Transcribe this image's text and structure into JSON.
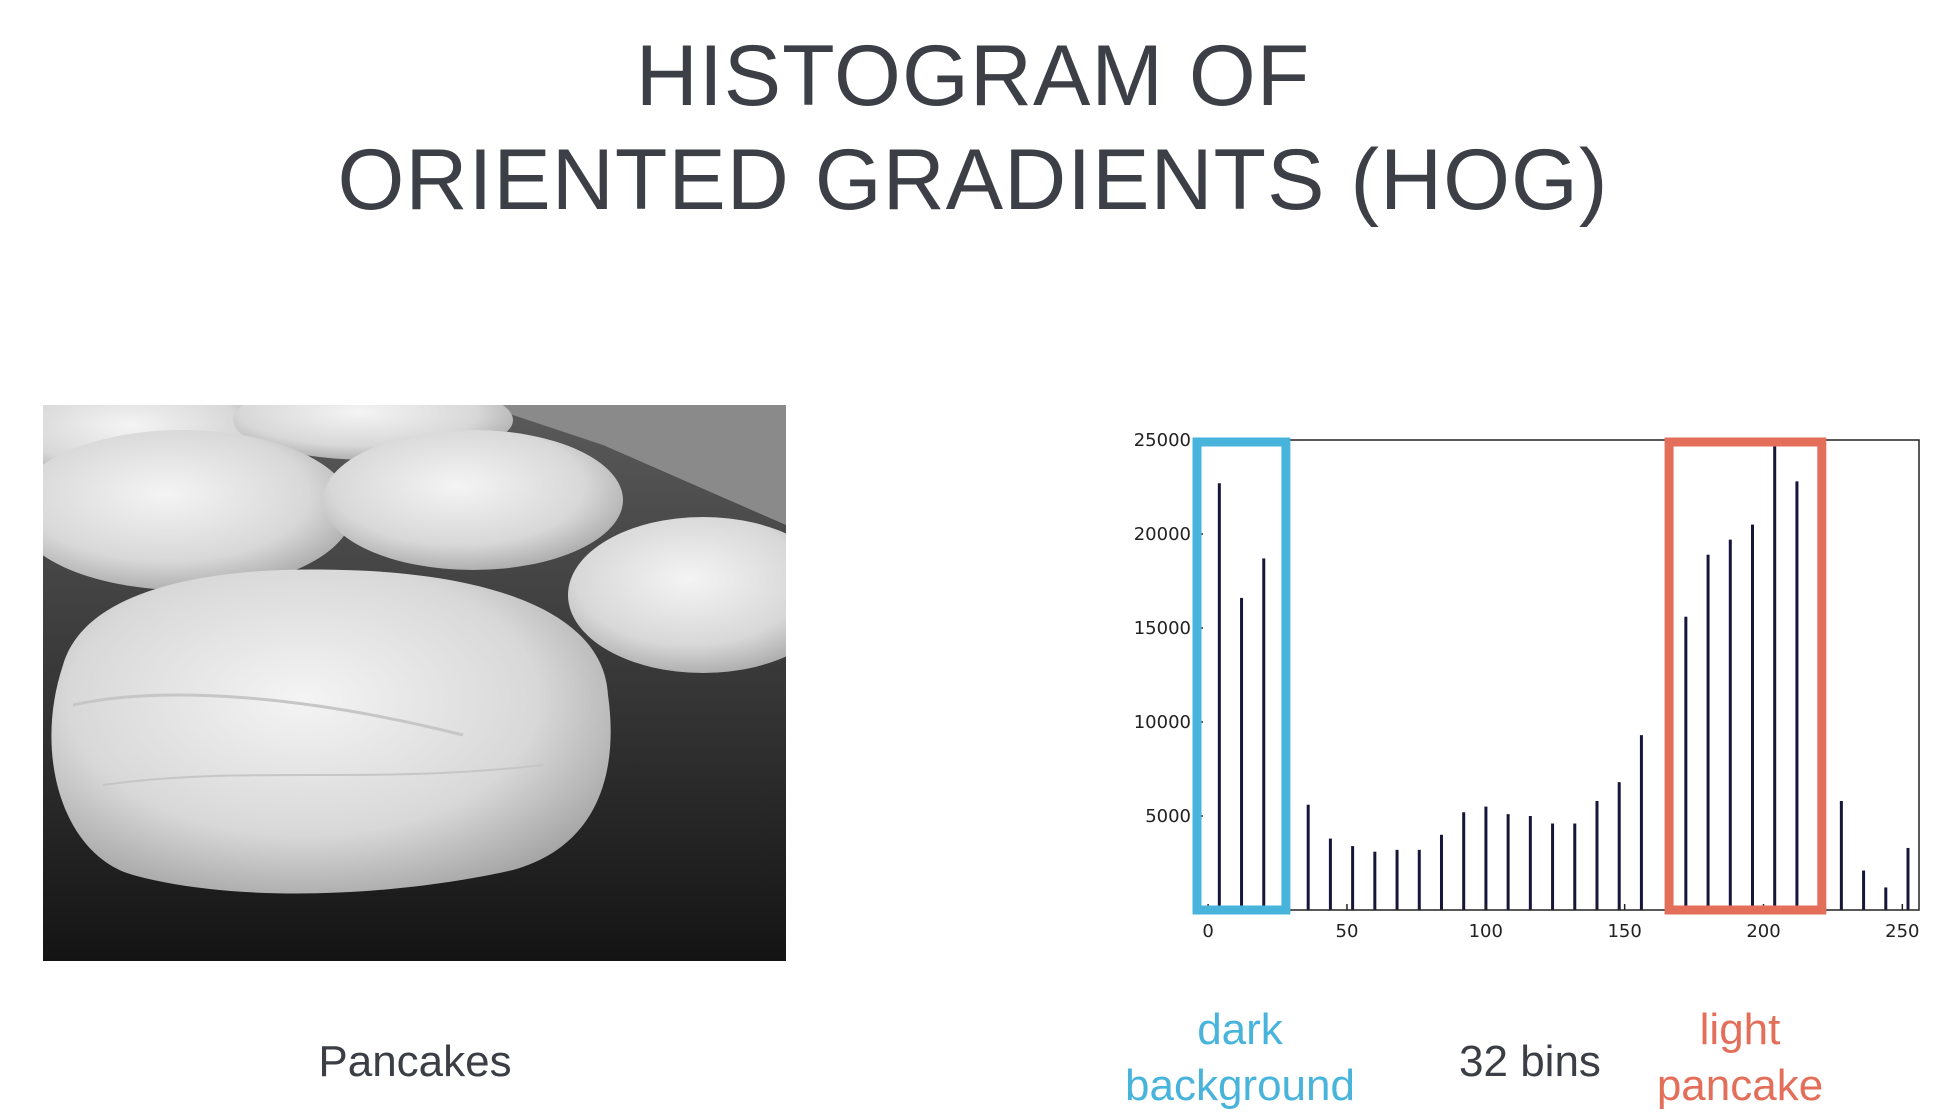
{
  "title": {
    "line1": "HISTOGRAM OF",
    "line2": "ORIENTED GRADIENTS (HOG)"
  },
  "photo": {
    "caption": "Pancakes"
  },
  "captions": {
    "dark": {
      "line1": "dark",
      "line2": "background"
    },
    "bins": "32 bins",
    "light": {
      "line1": "light",
      "line2": "pancake"
    }
  },
  "colors": {
    "dark_box": "#48b4dc",
    "light_box": "#e36f5b",
    "bar": "#16163a",
    "text": "#3b3f45"
  },
  "chart_data": {
    "type": "bar",
    "title": "",
    "xlabel": "",
    "ylabel": "",
    "xlim": [
      -4,
      256
    ],
    "ylim": [
      0,
      25000
    ],
    "xticks": [
      0,
      50,
      100,
      150,
      200,
      250
    ],
    "yticks": [
      5000,
      10000,
      15000,
      20000,
      25000
    ],
    "grid": false,
    "bar_width": 1,
    "x": [
      4,
      12,
      20,
      36,
      44,
      52,
      60,
      68,
      76,
      84,
      92,
      100,
      108,
      116,
      124,
      132,
      140,
      148,
      156,
      172,
      180,
      188,
      196,
      204,
      212,
      228,
      236,
      244,
      252
    ],
    "values": [
      22700,
      16600,
      18700,
      5600,
      3800,
      3400,
      3100,
      3200,
      3200,
      4000,
      5200,
      5500,
      5100,
      5000,
      4600,
      4600,
      5800,
      6800,
      9300,
      15600,
      18900,
      19700,
      20500,
      24800,
      22800,
      5800,
      2100,
      1200,
      3300
    ],
    "highlights": [
      {
        "label": "dark background",
        "x_range": [
          -4,
          28
        ]
      },
      {
        "label": "light pancake",
        "x_range": [
          166,
          221
        ]
      }
    ]
  }
}
